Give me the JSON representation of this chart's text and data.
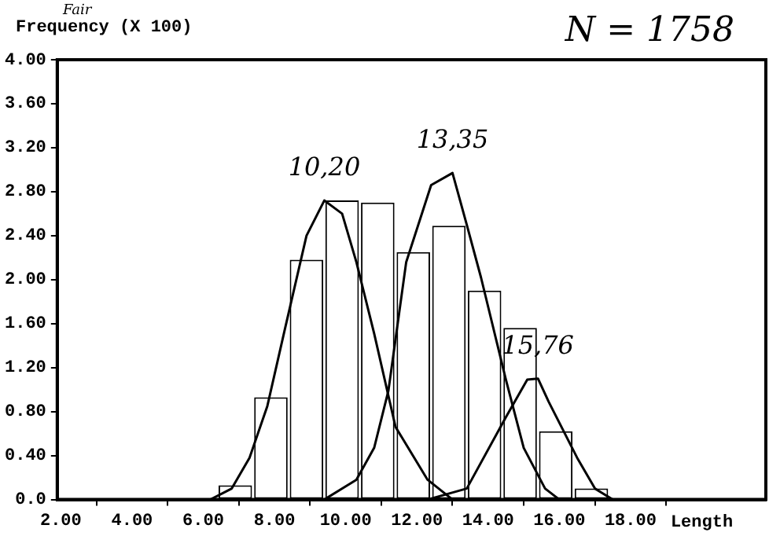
{
  "chart_data": {
    "type": "histogram",
    "ylabel": "Frequency (X 100)",
    "xlabel": "Length",
    "bins": [
      6.4,
      7.4,
      8.4,
      9.4,
      10.4,
      11.4,
      12.4,
      13.4,
      14.4,
      15.4,
      16.4,
      17.4
    ],
    "values": [
      0.13,
      0.93,
      2.18,
      2.72,
      2.7,
      2.25,
      2.49,
      1.9,
      1.56,
      0.62,
      0.1
    ],
    "color": "#ffffff",
    "series": [
      {
        "type": "line",
        "color": "#000000",
        "x": [
          6.2,
          6.8,
          7.3,
          7.8,
          8.3,
          8.9,
          9.4,
          9.9,
          10.3,
          10.8,
          11.4,
          12.3,
          13.0
        ],
        "values": [
          0,
          0.1,
          0.38,
          0.85,
          1.56,
          2.4,
          2.72,
          2.6,
          2.16,
          1.51,
          0.66,
          0.18,
          0
        ]
      },
      {
        "type": "line",
        "color": "#000000",
        "x": [
          9.4,
          10.3,
          10.8,
          11.2,
          11.7,
          12.4,
          13.0,
          13.4,
          13.8,
          14.5,
          15.0,
          15.6,
          16.0
        ],
        "values": [
          0,
          0.18,
          0.47,
          0.99,
          2.16,
          2.86,
          2.97,
          2.5,
          2.02,
          1.09,
          0.47,
          0.1,
          0
        ]
      },
      {
        "type": "line",
        "color": "#000000",
        "x": [
          12.3,
          13.4,
          14.5,
          15.1,
          15.4,
          15.7,
          16.5,
          17.0,
          17.5
        ],
        "values": [
          0,
          0.1,
          0.75,
          1.09,
          1.1,
          0.89,
          0.38,
          0.1,
          0
        ]
      }
    ],
    "xlim": [
      1.9,
      21.8
    ],
    "xticks": [
      {
        "value": 2,
        "label": "2.00"
      },
      {
        "value": 4,
        "label": "4.00"
      },
      {
        "value": 6,
        "label": "6.00"
      },
      {
        "value": 8,
        "label": "8.00"
      },
      {
        "value": 10,
        "label": "10.00"
      },
      {
        "value": 12,
        "label": "12.00"
      },
      {
        "value": 14,
        "label": "14.00"
      },
      {
        "value": 16,
        "label": "16.00"
      },
      {
        "value": 18,
        "label": "18.00"
      }
    ],
    "ylim": [
      0,
      4
    ],
    "yticks": [
      {
        "value": 0,
        "label": "0.0"
      },
      {
        "value": 0.4,
        "label": "0.40"
      },
      {
        "value": 0.8,
        "label": "0.80"
      },
      {
        "value": 1.2,
        "label": "1.20"
      },
      {
        "value": 1.6,
        "label": "1.60"
      },
      {
        "value": 2,
        "label": "2.00"
      },
      {
        "value": 2.4,
        "label": "2.40"
      },
      {
        "value": 2.8,
        "label": "2.80"
      },
      {
        "value": 3.2,
        "label": "3.20"
      },
      {
        "value": 3.6,
        "label": "3.60"
      },
      {
        "value": 4,
        "label": "4.00"
      }
    ],
    "grid": false,
    "legend": false,
    "marker": "none",
    "line_style": "solid",
    "annotations": [
      {
        "text": "10,20",
        "x": 9.4,
        "y": 2.72
      },
      {
        "text": "13,35",
        "x": 13.0,
        "y": 2.97
      },
      {
        "text": "15,76",
        "x": 15.4,
        "y": 1.1
      },
      "N = 1758",
      "Fair"
    ]
  }
}
